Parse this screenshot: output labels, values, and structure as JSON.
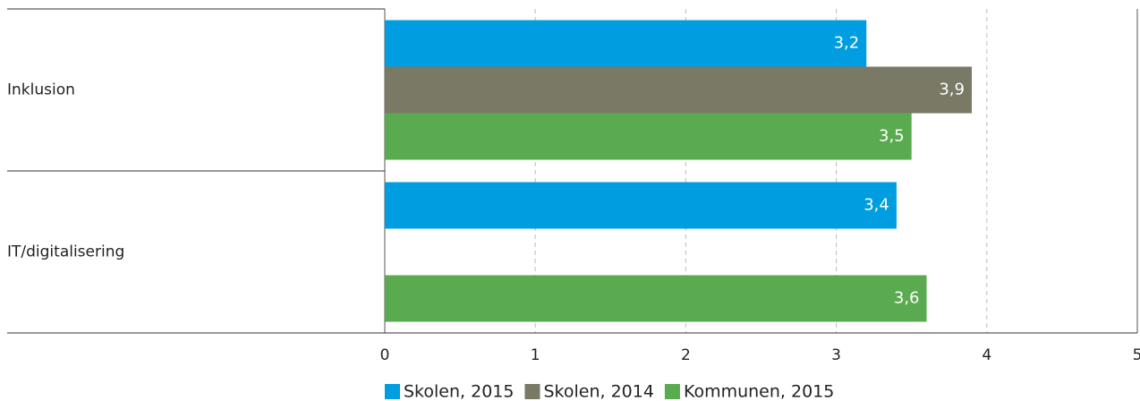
{
  "chart_data": {
    "type": "hbar",
    "categories": [
      "Inklusion",
      "IT/digitalisering"
    ],
    "series": [
      {
        "name": "Skolen, 2015",
        "color": "#009de0",
        "values": [
          3.2,
          3.4
        ],
        "value_labels": [
          "3,2",
          "3,4"
        ]
      },
      {
        "name": "Skolen, 2014",
        "color": "#7a7966",
        "values": [
          3.9,
          null
        ],
        "value_labels": [
          "3,9",
          null
        ]
      },
      {
        "name": "Kommunen, 2015",
        "color": "#5aaa50",
        "values": [
          3.5,
          3.6
        ],
        "value_labels": [
          "3,5",
          "3,6"
        ]
      }
    ],
    "xlim": [
      0,
      5
    ],
    "xticks": [
      0,
      1,
      2,
      3,
      4,
      5
    ],
    "grid": true,
    "legend": "bottom"
  }
}
